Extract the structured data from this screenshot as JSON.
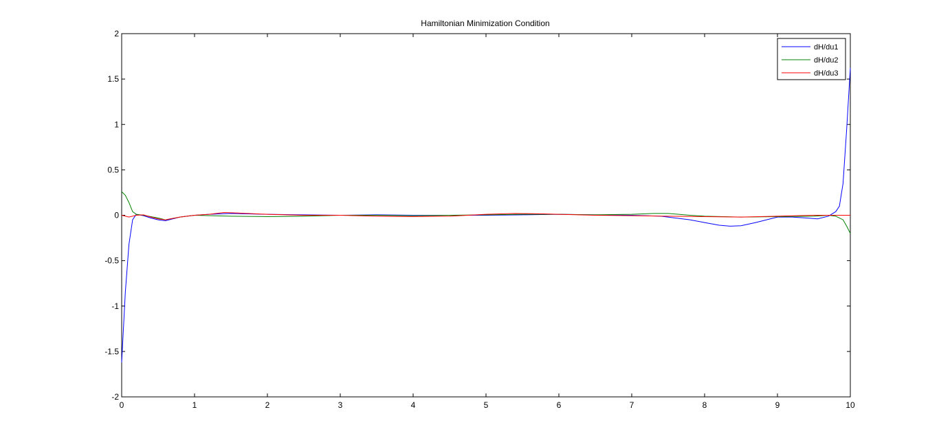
{
  "chart_data": {
    "type": "line",
    "title": "Hamiltonian Minimization Condition",
    "xlabel": "",
    "ylabel": "",
    "xlim": [
      0,
      10
    ],
    "ylim": [
      -2,
      2
    ],
    "xticks": [
      0,
      1,
      2,
      3,
      4,
      5,
      6,
      7,
      8,
      9,
      10
    ],
    "yticks": [
      -2,
      -1.5,
      -1,
      -0.5,
      0,
      0.5,
      1,
      1.5,
      2
    ],
    "xtick_labels": [
      "0",
      "1",
      "2",
      "3",
      "4",
      "5",
      "6",
      "7",
      "8",
      "9",
      "10"
    ],
    "ytick_labels": [
      "-2",
      "-1.5",
      "-1",
      "-0.5",
      "0",
      "0.5",
      "1",
      "1.5",
      "2"
    ],
    "grid": false,
    "legend_position": "top-right",
    "series": [
      {
        "name": "dH/du1",
        "color": "#0000ff",
        "x": [
          0,
          0.05,
          0.1,
          0.15,
          0.2,
          0.3,
          0.4,
          0.5,
          0.6,
          0.7,
          0.8,
          1.0,
          1.2,
          1.5,
          2.0,
          2.5,
          3.0,
          3.5,
          4.0,
          4.5,
          5.0,
          5.5,
          6.0,
          6.5,
          7.0,
          7.4,
          7.8,
          8.0,
          8.2,
          8.35,
          8.5,
          8.7,
          9.0,
          9.2,
          9.4,
          9.55,
          9.7,
          9.8,
          9.85,
          9.9,
          9.95,
          10.0
        ],
        "y": [
          -1.62,
          -0.85,
          -0.32,
          -0.05,
          0.01,
          -0.005,
          -0.03,
          -0.05,
          -0.06,
          -0.04,
          -0.02,
          0.0,
          0.01,
          0.02,
          0.01,
          0.005,
          0.0,
          0.005,
          0.0,
          0.0,
          0.0,
          0.005,
          0.01,
          0.005,
          0.0,
          -0.01,
          -0.05,
          -0.08,
          -0.11,
          -0.12,
          -0.115,
          -0.08,
          -0.02,
          -0.02,
          -0.03,
          -0.04,
          -0.01,
          0.04,
          0.1,
          0.35,
          0.95,
          1.62
        ]
      },
      {
        "name": "dH/du2",
        "color": "#008000",
        "x": [
          0,
          0.05,
          0.1,
          0.15,
          0.2,
          0.3,
          0.5,
          0.6,
          0.8,
          1.0,
          1.5,
          2.0,
          2.5,
          3.0,
          3.5,
          4.0,
          4.5,
          5.0,
          5.5,
          6.0,
          6.5,
          7.0,
          7.3,
          7.5,
          7.8,
          8.0,
          8.5,
          9.0,
          9.5,
          9.7,
          9.8,
          9.9,
          9.95,
          10.0
        ],
        "y": [
          0.26,
          0.22,
          0.14,
          0.04,
          0.01,
          0.0,
          -0.03,
          -0.05,
          -0.02,
          0.0,
          -0.01,
          -0.015,
          -0.01,
          0.0,
          0.0,
          -0.005,
          0.0,
          0.005,
          0.01,
          0.01,
          0.005,
          0.01,
          0.02,
          0.02,
          0.0,
          -0.01,
          -0.02,
          -0.015,
          -0.01,
          0.0,
          -0.01,
          -0.05,
          -0.12,
          -0.2
        ]
      },
      {
        "name": "dH/du3",
        "color": "#ff0000",
        "x": [
          0,
          0.1,
          0.2,
          0.3,
          0.4,
          0.5,
          0.6,
          0.8,
          1.0,
          1.2,
          1.4,
          1.6,
          2.0,
          2.5,
          3.0,
          3.5,
          4.0,
          4.5,
          5.0,
          5.4,
          5.8,
          6.0,
          6.5,
          7.0,
          7.5,
          8.0,
          8.5,
          9.0,
          9.5,
          10.0
        ],
        "y": [
          0.0,
          -0.02,
          0.0,
          0.005,
          -0.02,
          -0.04,
          -0.05,
          -0.02,
          0.0,
          0.01,
          0.03,
          0.025,
          0.01,
          0.0,
          0.0,
          -0.01,
          -0.015,
          -0.01,
          0.01,
          0.02,
          0.015,
          0.01,
          0.0,
          -0.005,
          -0.01,
          -0.015,
          -0.02,
          -0.01,
          0.0,
          0.0
        ]
      }
    ]
  }
}
